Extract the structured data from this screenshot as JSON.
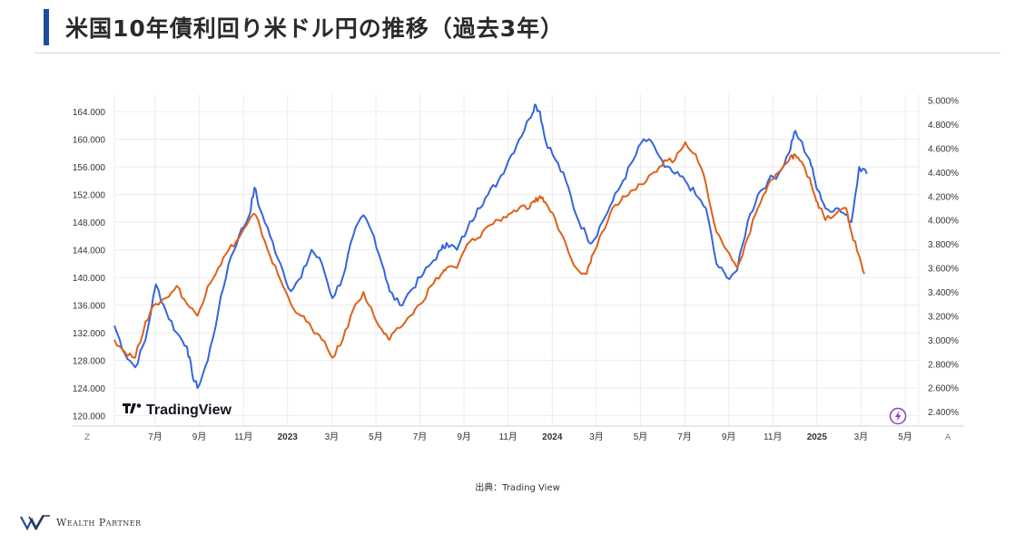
{
  "page": {
    "title": "米国10年債利回り米ドル円の推移（過去3年）",
    "source": "出典：Trading View",
    "logo_text": "Wealth Partner"
  },
  "colors": {
    "accent": "#1c4e9f",
    "usdjpy_line": "#3366dd",
    "yield_line": "#e06018",
    "grid": "#ececec"
  },
  "chart_data": {
    "type": "line",
    "watermark": "TradingView",
    "x_tick_labels": [
      "7月",
      "9月",
      "11月",
      "2023",
      "3月",
      "5月",
      "7月",
      "9月",
      "11月",
      "2024",
      "3月",
      "5月",
      "7月",
      "9月",
      "11月",
      "2025",
      "3月",
      "5月"
    ],
    "bold_tick_labels": [
      "2023",
      "2024",
      "2025"
    ],
    "x_edge_labels": {
      "left": "Z",
      "right": "A"
    },
    "left_axis": {
      "range": [
        118.5,
        166.5
      ],
      "ticks": [
        "120.000",
        "124.000",
        "128.000",
        "132.000",
        "136.000",
        "140.000",
        "144.000",
        "148.000",
        "152.000",
        "156.000",
        "160.000",
        "164.000"
      ]
    },
    "right_axis": {
      "range": [
        2.28,
        5.05
      ],
      "ticks": [
        "2.400%",
        "2.600%",
        "2.800%",
        "3.000%",
        "3.200%",
        "3.400%",
        "3.600%",
        "3.800%",
        "4.000%",
        "4.200%",
        "4.400%",
        "4.600%",
        "4.800%",
        "5.000%"
      ]
    },
    "series": [
      {
        "axis": "left",
        "color": "#3366dd",
        "points": [
          [
            0,
            133
          ],
          [
            2,
            129
          ],
          [
            4,
            127
          ],
          [
            6,
            131
          ],
          [
            8,
            139
          ],
          [
            10,
            135
          ],
          [
            12,
            132
          ],
          [
            14,
            130
          ],
          [
            15,
            126
          ],
          [
            16,
            124
          ],
          [
            18,
            128
          ],
          [
            20,
            135
          ],
          [
            22,
            142
          ],
          [
            24,
            146
          ],
          [
            26,
            149
          ],
          [
            27,
            153
          ],
          [
            28,
            150
          ],
          [
            30,
            146
          ],
          [
            32,
            142
          ],
          [
            34,
            138
          ],
          [
            36,
            140
          ],
          [
            38,
            144
          ],
          [
            40,
            142
          ],
          [
            42,
            137
          ],
          [
            44,
            140
          ],
          [
            46,
            146
          ],
          [
            48,
            149
          ],
          [
            50,
            146
          ],
          [
            52,
            141
          ],
          [
            53,
            138
          ],
          [
            55,
            136
          ],
          [
            57,
            138
          ],
          [
            59,
            140
          ],
          [
            61,
            142
          ],
          [
            63,
            144
          ],
          [
            64,
            145
          ],
          [
            66,
            144
          ],
          [
            68,
            147
          ],
          [
            70,
            150
          ],
          [
            72,
            152
          ],
          [
            74,
            154
          ],
          [
            76,
            157
          ],
          [
            78,
            160
          ],
          [
            80,
            163
          ],
          [
            81,
            165
          ],
          [
            82,
            164
          ],
          [
            83,
            160
          ],
          [
            85,
            157
          ],
          [
            87,
            154
          ],
          [
            89,
            149
          ],
          [
            91,
            146
          ],
          [
            92,
            145
          ],
          [
            94,
            148
          ],
          [
            96,
            151
          ],
          [
            98,
            154
          ],
          [
            100,
            157
          ],
          [
            102,
            160
          ],
          [
            104,
            159
          ],
          [
            106,
            156
          ],
          [
            108,
            155
          ],
          [
            110,
            154
          ],
          [
            112,
            152
          ],
          [
            114,
            150
          ],
          [
            116,
            142
          ],
          [
            118,
            140
          ],
          [
            120,
            141
          ],
          [
            122,
            148
          ],
          [
            124,
            152
          ],
          [
            126,
            154
          ],
          [
            128,
            155
          ],
          [
            130,
            158
          ],
          [
            131,
            161
          ],
          [
            132,
            160
          ],
          [
            134,
            157
          ],
          [
            135,
            154
          ],
          [
            136,
            152
          ],
          [
            137,
            150
          ],
          [
            139,
            150
          ],
          [
            141,
            149
          ],
          [
            142,
            148
          ],
          [
            143.5,
            156
          ],
          [
            145,
            155
          ]
        ]
      },
      {
        "axis": "right",
        "color": "#e06018",
        "points": [
          [
            0,
            3.0
          ],
          [
            2,
            2.9
          ],
          [
            4,
            2.85
          ],
          [
            6,
            3.15
          ],
          [
            8,
            3.3
          ],
          [
            10,
            3.35
          ],
          [
            12,
            3.45
          ],
          [
            14,
            3.3
          ],
          [
            16,
            3.2
          ],
          [
            18,
            3.45
          ],
          [
            20,
            3.6
          ],
          [
            22,
            3.75
          ],
          [
            24,
            3.85
          ],
          [
            26,
            4.0
          ],
          [
            27,
            4.05
          ],
          [
            28,
            3.95
          ],
          [
            30,
            3.7
          ],
          [
            32,
            3.5
          ],
          [
            34,
            3.3
          ],
          [
            36,
            3.2
          ],
          [
            38,
            3.1
          ],
          [
            40,
            3.0
          ],
          [
            42,
            2.85
          ],
          [
            44,
            3.0
          ],
          [
            46,
            3.25
          ],
          [
            48,
            3.4
          ],
          [
            50,
            3.2
          ],
          [
            52,
            3.05
          ],
          [
            53,
            3.0
          ],
          [
            55,
            3.1
          ],
          [
            57,
            3.2
          ],
          [
            59,
            3.3
          ],
          [
            61,
            3.45
          ],
          [
            63,
            3.55
          ],
          [
            64,
            3.6
          ],
          [
            66,
            3.6
          ],
          [
            68,
            3.8
          ],
          [
            70,
            3.85
          ],
          [
            72,
            3.95
          ],
          [
            74,
            4.0
          ],
          [
            76,
            4.05
          ],
          [
            78,
            4.1
          ],
          [
            80,
            4.1
          ],
          [
            81,
            4.15
          ],
          [
            82,
            4.2
          ],
          [
            83,
            4.15
          ],
          [
            85,
            4.0
          ],
          [
            87,
            3.8
          ],
          [
            89,
            3.6
          ],
          [
            91,
            3.55
          ],
          [
            92,
            3.7
          ],
          [
            94,
            3.9
          ],
          [
            96,
            4.1
          ],
          [
            98,
            4.2
          ],
          [
            100,
            4.25
          ],
          [
            102,
            4.3
          ],
          [
            104,
            4.4
          ],
          [
            106,
            4.5
          ],
          [
            108,
            4.5
          ],
          [
            110,
            4.65
          ],
          [
            112,
            4.55
          ],
          [
            114,
            4.3
          ],
          [
            116,
            3.9
          ],
          [
            118,
            3.75
          ],
          [
            120,
            3.6
          ],
          [
            122,
            3.85
          ],
          [
            124,
            4.1
          ],
          [
            126,
            4.3
          ],
          [
            128,
            4.4
          ],
          [
            130,
            4.5
          ],
          [
            131,
            4.55
          ],
          [
            132,
            4.5
          ],
          [
            134,
            4.35
          ],
          [
            135,
            4.2
          ],
          [
            136,
            4.1
          ],
          [
            137,
            4.0
          ],
          [
            139,
            4.05
          ],
          [
            141,
            4.1
          ],
          [
            142,
            3.9
          ],
          [
            143.5,
            3.7
          ],
          [
            144.5,
            3.55
          ]
        ]
      }
    ]
  }
}
